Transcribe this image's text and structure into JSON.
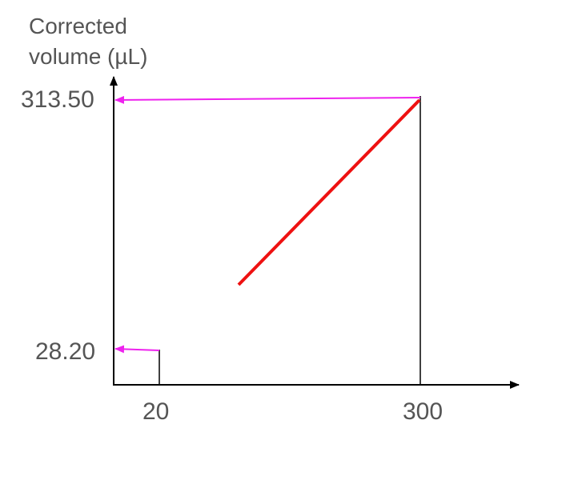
{
  "axis": {
    "y_label_line1": "Corrected",
    "y_label_line2": "volume (µL)",
    "y_ticks": [
      "313.50",
      "28.20"
    ],
    "x_ticks": [
      "20",
      "300"
    ]
  },
  "colors": {
    "axis": "#000000",
    "line": "#ee1111",
    "arrow": "#ee22ee",
    "text": "#555555"
  }
}
